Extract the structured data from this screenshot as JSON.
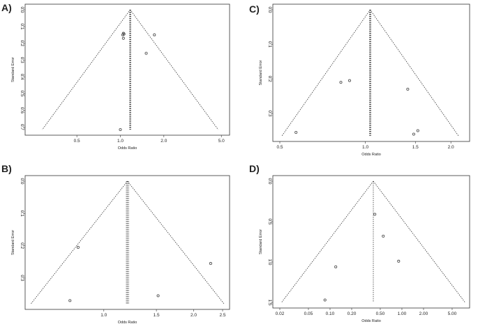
{
  "chart_data": [
    {
      "panel_label": "A)",
      "type": "scatter",
      "subtype": "funnel-plot",
      "xlabel": "Odds Ratio",
      "ylabel": "Standard Error",
      "x_scale": "log",
      "x_ticks": [
        0.5,
        1.0,
        2.0,
        5.0
      ],
      "x_tick_labels": [
        "0.5",
        "1.0",
        "2.0",
        "5.0"
      ],
      "y_ticks": [
        0,
        0.1,
        0.2,
        0.3,
        0.4,
        0.5,
        0.6,
        0.7
      ],
      "y_tick_labels": [
        "0.0",
        "0.1",
        "0.2",
        "0.3",
        "0.4",
        "0.5",
        "0.6",
        "0.7"
      ],
      "xlim": [
        0.245,
        5.1
      ],
      "ylim": [
        0,
        0.715
      ],
      "y_inverted": true,
      "pooled_estimate": 1.17,
      "pooled_ci": [
        1.16,
        1.18
      ],
      "points": [
        {
          "x": 1.05,
          "y": 0.14
        },
        {
          "x": 1.06,
          "y": 0.145
        },
        {
          "x": 1.04,
          "y": 0.15
        },
        {
          "x": 1.05,
          "y": 0.17
        },
        {
          "x": 1.72,
          "y": 0.15
        },
        {
          "x": 1.51,
          "y": 0.26
        },
        {
          "x": 1.0,
          "y": 0.715
        }
      ],
      "colors": {
        "points": "#555555",
        "lines": "#333333"
      }
    },
    {
      "panel_label": "B)",
      "type": "scatter",
      "subtype": "funnel-plot",
      "xlabel": "Odds Ratio",
      "ylabel": "Standard Error",
      "x_scale": "log",
      "x_ticks": [
        1.0,
        1.5,
        2.0,
        2.5
      ],
      "x_tick_labels": [
        "1.0",
        "1.5",
        "2.0",
        "2.5"
      ],
      "y_ticks": [
        0,
        0.1,
        0.2,
        0.3
      ],
      "y_tick_labels": [
        "0.0",
        "0.1",
        "0.2",
        "0.3"
      ],
      "xlim": [
        0.575,
        2.5
      ],
      "ylim": [
        0,
        0.38
      ],
      "y_inverted": true,
      "pooled_estimate": 1.2,
      "pooled_ci": [
        1.19,
        1.21
      ],
      "points": [
        {
          "x": 0.82,
          "y": 0.205
        },
        {
          "x": 0.77,
          "y": 0.37
        },
        {
          "x": 2.28,
          "y": 0.255
        },
        {
          "x": 1.52,
          "y": 0.355
        }
      ],
      "colors": {
        "points": "#555555",
        "lines": "#333333"
      }
    },
    {
      "panel_label": "C)",
      "type": "scatter",
      "subtype": "funnel-plot",
      "xlabel": "Odds Ratio",
      "ylabel": "Standard Error",
      "x_scale": "log",
      "x_ticks": [
        0.5,
        1.0,
        1.5,
        2.0
      ],
      "x_tick_labels": [
        "0.5",
        "1.0",
        "1.5",
        "2.0"
      ],
      "y_ticks": [
        0,
        0.1,
        0.2,
        0.3
      ],
      "y_tick_labels": [
        "0.0",
        "0.1",
        "0.2",
        "0.3"
      ],
      "xlim": [
        0.5,
        2.2
      ],
      "ylim": [
        0,
        0.365
      ],
      "y_inverted": true,
      "pooled_estimate": 1.04,
      "pooled_ci": [
        1.035,
        1.045
      ],
      "points": [
        {
          "x": 0.57,
          "y": 0.355
        },
        {
          "x": 0.82,
          "y": 0.21
        },
        {
          "x": 0.88,
          "y": 0.205
        },
        {
          "x": 1.41,
          "y": 0.23
        },
        {
          "x": 1.48,
          "y": 0.36
        },
        {
          "x": 1.53,
          "y": 0.35
        }
      ],
      "colors": {
        "points": "#555555",
        "lines": "#333333"
      }
    },
    {
      "panel_label": "D)",
      "type": "scatter",
      "subtype": "funnel-plot",
      "xlabel": "Odds Ratio",
      "ylabel": "Standard Error",
      "x_scale": "log",
      "x_ticks": [
        0.02,
        0.05,
        0.1,
        0.2,
        0.5,
        1.0,
        2.0,
        5.0
      ],
      "x_tick_labels": [
        "0.02",
        "0.05",
        "0.10",
        "0.20",
        "0.50",
        "1.00",
        "2.00",
        "5.00"
      ],
      "y_ticks": [
        0,
        0.5,
        1.0,
        1.5
      ],
      "y_tick_labels": [
        "0.0",
        "0.5",
        "1.0",
        "1.5"
      ],
      "xlim": [
        0.02,
        7.0
      ],
      "ylim": [
        0,
        1.5
      ],
      "y_inverted": true,
      "pooled_estimate": 0.4,
      "pooled_ci": [
        0.4,
        0.4
      ],
      "points": [
        {
          "x": 0.42,
          "y": 0.41
        },
        {
          "x": 0.55,
          "y": 0.68
        },
        {
          "x": 0.9,
          "y": 0.99
        },
        {
          "x": 0.12,
          "y": 1.06
        },
        {
          "x": 0.085,
          "y": 1.47
        }
      ],
      "colors": {
        "points": "#555555",
        "lines": "#333333"
      }
    }
  ]
}
